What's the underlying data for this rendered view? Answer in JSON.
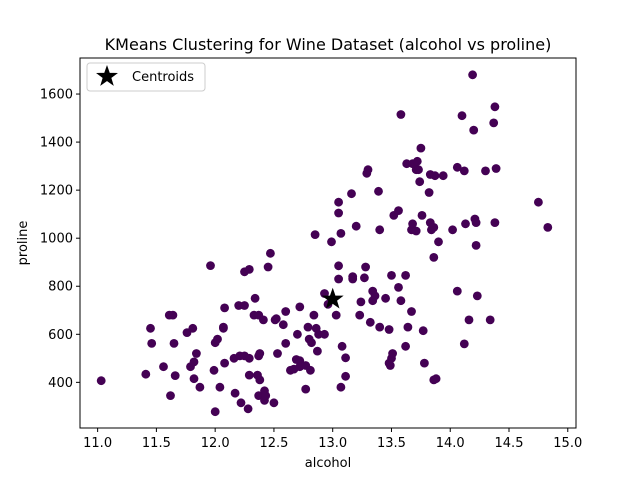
{
  "chart_data": {
    "type": "scatter",
    "title": "KMeans Clustering for Wine Dataset (alcohol vs proline)",
    "xlabel": "alcohol",
    "ylabel": "proline",
    "xlim": [
      10.85,
      15.07
    ],
    "ylim": [
      210,
      1750
    ],
    "xticks": [
      11.0,
      11.5,
      12.0,
      12.5,
      13.0,
      13.5,
      14.0,
      14.5,
      15.0
    ],
    "xtick_labels": [
      "11.0",
      "11.5",
      "12.0",
      "12.5",
      "13.0",
      "13.5",
      "14.0",
      "14.5",
      "15.0"
    ],
    "yticks": [
      400,
      600,
      800,
      1000,
      1200,
      1400,
      1600
    ],
    "ytick_labels": [
      "400",
      "600",
      "800",
      "1000",
      "1200",
      "1400",
      "1600"
    ],
    "grid": false,
    "legend": {
      "position": "top-left",
      "entries": [
        {
          "label": "Centroids",
          "marker": "star",
          "color": "#000000"
        }
      ]
    },
    "point_color": "#440154",
    "centroid": {
      "x": 13.0,
      "y": 746
    },
    "points": [
      [
        11.03,
        407
      ],
      [
        11.41,
        434
      ],
      [
        11.45,
        625
      ],
      [
        11.46,
        562
      ],
      [
        11.56,
        465
      ],
      [
        11.61,
        680
      ],
      [
        11.62,
        345
      ],
      [
        11.64,
        680
      ],
      [
        11.65,
        562
      ],
      [
        11.66,
        428
      ],
      [
        11.76,
        607
      ],
      [
        11.79,
        465
      ],
      [
        11.81,
        625
      ],
      [
        11.82,
        415
      ],
      [
        11.82,
        485
      ],
      [
        11.84,
        520
      ],
      [
        11.87,
        380
      ],
      [
        11.96,
        886
      ],
      [
        11.99,
        450
      ],
      [
        12.0,
        278
      ],
      [
        12.0,
        565
      ],
      [
        12.02,
        580
      ],
      [
        12.04,
        380
      ],
      [
        12.07,
        625
      ],
      [
        12.07,
        630
      ],
      [
        12.08,
        480
      ],
      [
        12.08,
        710
      ],
      [
        12.16,
        500
      ],
      [
        12.17,
        355
      ],
      [
        12.2,
        720
      ],
      [
        12.21,
        510
      ],
      [
        12.22,
        315
      ],
      [
        12.25,
        720
      ],
      [
        12.25,
        510
      ],
      [
        12.25,
        860
      ],
      [
        12.28,
        290
      ],
      [
        12.29,
        430
      ],
      [
        12.29,
        870
      ],
      [
        12.29,
        500
      ],
      [
        12.33,
        680
      ],
      [
        12.34,
        750
      ],
      [
        12.36,
        430
      ],
      [
        12.37,
        345
      ],
      [
        12.37,
        510
      ],
      [
        12.37,
        680
      ],
      [
        12.38,
        520
      ],
      [
        12.38,
        410
      ],
      [
        12.41,
        660
      ],
      [
        12.42,
        365
      ],
      [
        12.42,
        325
      ],
      [
        12.43,
        345
      ],
      [
        12.45,
        880
      ],
      [
        12.47,
        937
      ],
      [
        12.5,
        315
      ],
      [
        12.51,
        660
      ],
      [
        12.52,
        665
      ],
      [
        12.53,
        520
      ],
      [
        12.58,
        640
      ],
      [
        12.6,
        562
      ],
      [
        12.6,
        695
      ],
      [
        12.64,
        450
      ],
      [
        12.67,
        455
      ],
      [
        12.69,
        495
      ],
      [
        12.7,
        600
      ],
      [
        12.72,
        490
      ],
      [
        12.72,
        465
      ],
      [
        12.72,
        714
      ],
      [
        12.77,
        470
      ],
      [
        12.77,
        372
      ],
      [
        12.79,
        630
      ],
      [
        12.8,
        580
      ],
      [
        12.81,
        450
      ],
      [
        12.82,
        565
      ],
      [
        12.84,
        680
      ],
      [
        12.85,
        1015
      ],
      [
        12.86,
        625
      ],
      [
        12.87,
        530
      ],
      [
        12.88,
        600
      ],
      [
        12.93,
        770
      ],
      [
        12.93,
        600
      ],
      [
        12.96,
        725
      ],
      [
        12.99,
        985
      ],
      [
        13.03,
        680
      ],
      [
        13.05,
        885
      ],
      [
        13.05,
        1150
      ],
      [
        13.05,
        1105
      ],
      [
        13.05,
        830
      ],
      [
        13.07,
        380
      ],
      [
        13.07,
        1020
      ],
      [
        13.08,
        550
      ],
      [
        13.11,
        425
      ],
      [
        13.11,
        502
      ],
      [
        13.16,
        1185
      ],
      [
        13.17,
        830
      ],
      [
        13.17,
        840
      ],
      [
        13.2,
        1050
      ],
      [
        13.23,
        680
      ],
      [
        13.24,
        735
      ],
      [
        13.27,
        835
      ],
      [
        13.28,
        880
      ],
      [
        13.29,
        1270
      ],
      [
        13.3,
        1285
      ],
      [
        13.32,
        650
      ],
      [
        13.34,
        740
      ],
      [
        13.34,
        780
      ],
      [
        13.36,
        760
      ],
      [
        13.39,
        1195
      ],
      [
        13.4,
        1035
      ],
      [
        13.4,
        630
      ],
      [
        13.45,
        750
      ],
      [
        13.48,
        620
      ],
      [
        13.48,
        480
      ],
      [
        13.49,
        470
      ],
      [
        13.5,
        500
      ],
      [
        13.5,
        845
      ],
      [
        13.51,
        520
      ],
      [
        13.52,
        1095
      ],
      [
        13.56,
        795
      ],
      [
        13.56,
        1115
      ],
      [
        13.58,
        1515
      ],
      [
        13.58,
        740
      ],
      [
        13.62,
        845
      ],
      [
        13.62,
        550
      ],
      [
        13.63,
        1310
      ],
      [
        13.64,
        630
      ],
      [
        13.67,
        1035
      ],
      [
        13.67,
        695
      ],
      [
        13.68,
        1310
      ],
      [
        13.68,
        1060
      ],
      [
        13.71,
        1285
      ],
      [
        13.71,
        1030
      ],
      [
        13.72,
        1320
      ],
      [
        13.73,
        1285
      ],
      [
        13.74,
        1235
      ],
      [
        13.75,
        1375
      ],
      [
        13.76,
        1095
      ],
      [
        13.77,
        615
      ],
      [
        13.78,
        480
      ],
      [
        13.82,
        1190
      ],
      [
        13.83,
        1065
      ],
      [
        13.83,
        1265
      ],
      [
        13.84,
        1035
      ],
      [
        13.86,
        1045
      ],
      [
        13.86,
        920
      ],
      [
        13.86,
        410
      ],
      [
        13.87,
        1260
      ],
      [
        13.88,
        415
      ],
      [
        13.9,
        985
      ],
      [
        13.94,
        1260
      ],
      [
        14.02,
        1035
      ],
      [
        14.06,
        1295
      ],
      [
        14.06,
        780
      ],
      [
        14.1,
        1510
      ],
      [
        14.12,
        560
      ],
      [
        14.12,
        1280
      ],
      [
        14.13,
        1060
      ],
      [
        14.16,
        660
      ],
      [
        14.19,
        1680
      ],
      [
        14.2,
        1450
      ],
      [
        14.21,
        1080
      ],
      [
        14.22,
        1065
      ],
      [
        14.22,
        970
      ],
      [
        14.23,
        760
      ],
      [
        14.3,
        1280
      ],
      [
        14.34,
        660
      ],
      [
        14.37,
        1480
      ],
      [
        14.38,
        1547
      ],
      [
        14.38,
        1065
      ],
      [
        14.39,
        1290
      ],
      [
        14.75,
        1150
      ],
      [
        14.83,
        1045
      ]
    ]
  }
}
